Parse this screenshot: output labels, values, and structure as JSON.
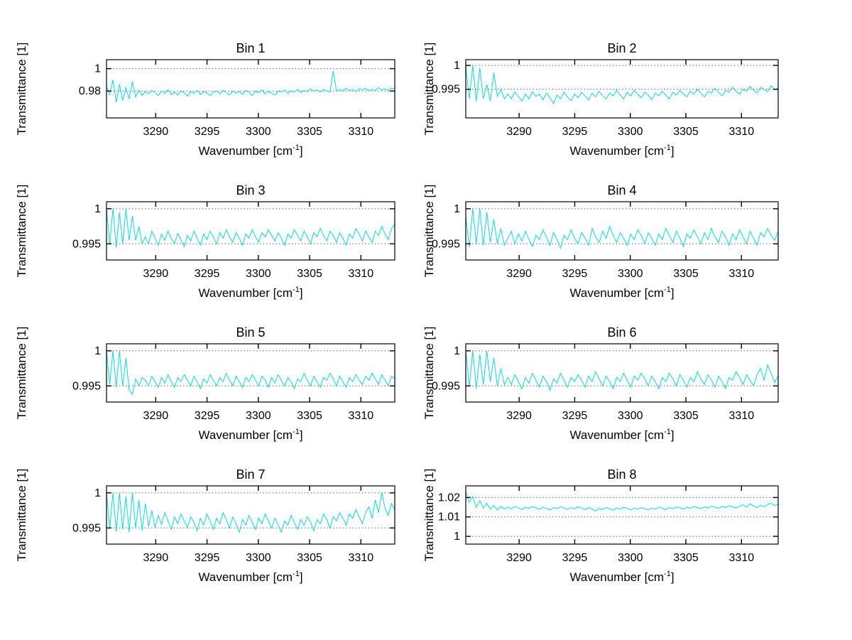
{
  "figure": {
    "background": "#ffffff",
    "axis_color": "#000000",
    "line_color": "#00e0e0",
    "grid_color": "#606060",
    "font_color": "#000000"
  },
  "chart_data": [
    {
      "type": "line",
      "title": "Bin 1",
      "xlabel_pre": "Wavenumber [cm",
      "xlabel_sup": "-1",
      "xlabel_post": "]",
      "ylabel": "Transmittance [1]",
      "xlim": [
        3285.2,
        3313.3
      ],
      "ylim": [
        0.956,
        1.008
      ],
      "xticks": [
        3290,
        3295,
        3300,
        3305,
        3310
      ],
      "xtick_labels": [
        "3290",
        "3295",
        "3300",
        "3305",
        "3310"
      ],
      "yticks": [
        0.98,
        1
      ],
      "ytick_labels": [
        "0.98",
        "1"
      ],
      "grid": "y-dotted",
      "legend": null,
      "values": [
        0.984,
        0.977,
        0.99,
        0.97,
        0.986,
        0.9715,
        0.983,
        0.973,
        0.9885,
        0.9745,
        0.981,
        0.976,
        0.9795,
        0.9775,
        0.9805,
        0.9785,
        0.976,
        0.98,
        0.978,
        0.981,
        0.977,
        0.979,
        0.9765,
        0.98,
        0.9785,
        0.9755,
        0.9795,
        0.978,
        0.9805,
        0.977,
        0.9795,
        0.9785,
        0.976,
        0.979,
        0.98,
        0.9775,
        0.9805,
        0.9785,
        0.9765,
        0.98,
        0.978,
        0.9795,
        0.977,
        0.9805,
        0.979,
        0.976,
        0.98,
        0.9785,
        0.981,
        0.9775,
        0.9795,
        0.978,
        0.9765,
        0.98,
        0.979,
        0.981,
        0.978,
        0.98,
        0.979,
        0.9815,
        0.9785,
        0.9805,
        0.9795,
        0.982,
        0.98,
        0.981,
        0.979,
        0.9815,
        0.98,
        0.979,
        0.998,
        0.98,
        0.9815,
        0.98,
        0.9825,
        0.9805,
        0.9815,
        0.9795,
        0.982,
        0.981,
        0.9825,
        0.98,
        0.9815,
        0.9805,
        0.983,
        0.981,
        0.982,
        0.9805,
        0.9825,
        0.9815
      ]
    },
    {
      "type": "line",
      "title": "Bin 2",
      "xlabel_pre": "Wavenumber [cm",
      "xlabel_sup": "-1",
      "xlabel_post": "]",
      "ylabel": "Transmittance [1]",
      "xlim": [
        3285.2,
        3313.3
      ],
      "ylim": [
        0.989,
        1.0012
      ],
      "xticks": [
        3290,
        3295,
        3300,
        3305,
        3310
      ],
      "xtick_labels": [
        "3290",
        "3295",
        "3300",
        "3305",
        "3310"
      ],
      "yticks": [
        0.995,
        1
      ],
      "ytick_labels": [
        "0.995",
        "1"
      ],
      "grid": "y-dotted",
      "legend": null,
      "values": [
        1.0,
        0.993,
        1.0,
        0.9925,
        0.9995,
        0.993,
        0.996,
        0.9925,
        0.9985,
        0.9935,
        0.995,
        0.993,
        0.994,
        0.993,
        0.9945,
        0.9935,
        0.9925,
        0.994,
        0.993,
        0.9945,
        0.9935,
        0.994,
        0.9928,
        0.9942,
        0.9932,
        0.992,
        0.9938,
        0.993,
        0.9944,
        0.9934,
        0.9926,
        0.994,
        0.9932,
        0.9944,
        0.9936,
        0.9928,
        0.9942,
        0.9934,
        0.9946,
        0.9936,
        0.993,
        0.9942,
        0.9936,
        0.9948,
        0.9938,
        0.993,
        0.9944,
        0.9936,
        0.9948,
        0.994,
        0.9932,
        0.9944,
        0.9938,
        0.9928,
        0.9942,
        0.9936,
        0.9946,
        0.9938,
        0.993,
        0.9944,
        0.9938,
        0.9948,
        0.994,
        0.9934,
        0.9946,
        0.994,
        0.995,
        0.9942,
        0.9934,
        0.9946,
        0.9942,
        0.9952,
        0.9944,
        0.9936,
        0.9948,
        0.9944,
        0.9954,
        0.9946,
        0.994,
        0.995,
        0.9946,
        0.9956,
        0.9948,
        0.9942,
        0.9954,
        0.995,
        0.9945,
        0.9958,
        0.995,
        0.9952
      ]
    },
    {
      "type": "line",
      "title": "Bin 3",
      "xlabel_pre": "Wavenumber [cm",
      "xlabel_sup": "-1",
      "xlabel_post": "]",
      "ylabel": "Transmittance [1]",
      "xlim": [
        3285.2,
        3313.3
      ],
      "ylim": [
        0.9927,
        1.001
      ],
      "xticks": [
        3290,
        3295,
        3300,
        3305,
        3310
      ],
      "xtick_labels": [
        "3290",
        "3295",
        "3300",
        "3305",
        "3310"
      ],
      "yticks": [
        0.995,
        1
      ],
      "ytick_labels": [
        "0.995",
        "1"
      ],
      "grid": "y-dotted",
      "legend": null,
      "values": [
        1.0,
        0.995,
        1.0,
        0.9945,
        0.9995,
        0.995,
        1.0,
        0.9955,
        0.999,
        0.9955,
        0.9975,
        0.995,
        0.996,
        0.995,
        0.9968,
        0.9958,
        0.9948,
        0.9964,
        0.9955,
        0.9968,
        0.9958,
        0.995,
        0.9965,
        0.9956,
        0.9946,
        0.9962,
        0.9954,
        0.9968,
        0.9958,
        0.9948,
        0.9964,
        0.9956,
        0.9968,
        0.996,
        0.995,
        0.9966,
        0.9958,
        0.997,
        0.996,
        0.9952,
        0.9966,
        0.9958,
        0.9948,
        0.9964,
        0.9958,
        0.997,
        0.996,
        0.9952,
        0.9966,
        0.996,
        0.997,
        0.9962,
        0.9954,
        0.9966,
        0.9958,
        0.9948,
        0.9964,
        0.9958,
        0.997,
        0.9962,
        0.9954,
        0.9968,
        0.996,
        0.995,
        0.9966,
        0.996,
        0.9972,
        0.9962,
        0.9954,
        0.9968,
        0.9962,
        0.9952,
        0.9966,
        0.9958,
        0.9948,
        0.9964,
        0.9958,
        0.9972,
        0.9964,
        0.9954,
        0.9968,
        0.996,
        0.9952,
        0.9968,
        0.9962,
        0.9975,
        0.9964,
        0.9956,
        0.9972,
        0.9978
      ]
    },
    {
      "type": "line",
      "title": "Bin 4",
      "xlabel_pre": "Wavenumber [cm",
      "xlabel_sup": "-1",
      "xlabel_post": "]",
      "ylabel": "Transmittance [1]",
      "xlim": [
        3285.2,
        3313.3
      ],
      "ylim": [
        0.9927,
        1.001
      ],
      "xticks": [
        3290,
        3295,
        3300,
        3305,
        3310
      ],
      "xtick_labels": [
        "3290",
        "3295",
        "3300",
        "3305",
        "3310"
      ],
      "yticks": [
        0.995,
        1
      ],
      "ytick_labels": [
        "0.995",
        "1"
      ],
      "grid": "y-dotted",
      "legend": null,
      "values": [
        0.999,
        0.9945,
        1.0,
        0.995,
        1.0,
        0.9948,
        0.9995,
        0.9952,
        0.9985,
        0.995,
        0.9972,
        0.9948,
        0.9958,
        0.9968,
        0.995,
        0.9964,
        0.9954,
        0.9968,
        0.9956,
        0.9946,
        0.9962,
        0.9956,
        0.997,
        0.996,
        0.9948,
        0.9966,
        0.9956,
        0.9944,
        0.9962,
        0.9956,
        0.997,
        0.9958,
        0.995,
        0.9966,
        0.9958,
        0.9948,
        0.9972,
        0.996,
        0.9952,
        0.9968,
        0.9958,
        0.9975,
        0.9962,
        0.9952,
        0.9966,
        0.9958,
        0.9948,
        0.9964,
        0.9956,
        0.997,
        0.9962,
        0.995,
        0.9966,
        0.9958,
        0.9948,
        0.9964,
        0.9956,
        0.9972,
        0.9962,
        0.9952,
        0.9968,
        0.9958,
        0.9946,
        0.9964,
        0.9958,
        0.997,
        0.996,
        0.995,
        0.9966,
        0.9956,
        0.9972,
        0.996,
        0.9952,
        0.9968,
        0.996,
        0.9948,
        0.9964,
        0.9956,
        0.997,
        0.996,
        0.995,
        0.9968,
        0.9958,
        0.9948,
        0.9966,
        0.996,
        0.9972,
        0.9962,
        0.9955,
        0.9968
      ]
    },
    {
      "type": "line",
      "title": "Bin 5",
      "xlabel_pre": "Wavenumber [cm",
      "xlabel_sup": "-1",
      "xlabel_post": "]",
      "ylabel": "Transmittance [1]",
      "xlim": [
        3285.2,
        3313.3
      ],
      "ylim": [
        0.9927,
        1.001
      ],
      "xticks": [
        3290,
        3295,
        3300,
        3305,
        3310
      ],
      "xtick_labels": [
        "3290",
        "3295",
        "3300",
        "3305",
        "3310"
      ],
      "yticks": [
        0.995,
        1
      ],
      "ytick_labels": [
        "0.995",
        "1"
      ],
      "grid": "y-dotted",
      "legend": null,
      "values": [
        1.0,
        0.9952,
        1.0,
        0.9948,
        1.0,
        0.995,
        0.999,
        0.9944,
        0.9938,
        0.996,
        0.995,
        0.9962,
        0.9958,
        0.995,
        0.9964,
        0.9956,
        0.9948,
        0.9962,
        0.9954,
        0.9966,
        0.9956,
        0.9948,
        0.9962,
        0.9956,
        0.9966,
        0.9958,
        0.995,
        0.9964,
        0.9956,
        0.9946,
        0.996,
        0.9954,
        0.9966,
        0.9958,
        0.995,
        0.9962,
        0.9956,
        0.9968,
        0.9958,
        0.995,
        0.9964,
        0.9956,
        0.9948,
        0.9962,
        0.9956,
        0.9966,
        0.9958,
        0.995,
        0.9964,
        0.9958,
        0.9948,
        0.9962,
        0.9954,
        0.9966,
        0.9958,
        0.995,
        0.9962,
        0.9956,
        0.9946,
        0.996,
        0.9956,
        0.9968,
        0.9958,
        0.995,
        0.9964,
        0.9956,
        0.9948,
        0.9962,
        0.9958,
        0.9968,
        0.996,
        0.995,
        0.9964,
        0.9956,
        0.9948,
        0.9962,
        0.9956,
        0.9966,
        0.9958,
        0.9952,
        0.9964,
        0.9958,
        0.9968,
        0.996,
        0.9952,
        0.9966,
        0.9958,
        0.995,
        0.9964,
        0.996
      ]
    },
    {
      "type": "line",
      "title": "Bin 6",
      "xlabel_pre": "Wavenumber [cm",
      "xlabel_sup": "-1",
      "xlabel_post": "]",
      "ylabel": "Transmittance [1]",
      "xlim": [
        3285.2,
        3313.3
      ],
      "ylim": [
        0.9927,
        1.001
      ],
      "xticks": [
        3290,
        3295,
        3300,
        3305,
        3310
      ],
      "xtick_labels": [
        "3290",
        "3295",
        "3300",
        "3305",
        "3310"
      ],
      "yticks": [
        0.995,
        1
      ],
      "ytick_labels": [
        "0.995",
        "1"
      ],
      "grid": "y-dotted",
      "legend": null,
      "values": [
        1.0,
        0.995,
        1.0,
        0.9946,
        0.9995,
        0.9952,
        1.0,
        0.9956,
        0.999,
        0.995,
        0.9975,
        0.9952,
        0.9962,
        0.9952,
        0.9966,
        0.9956,
        0.9946,
        0.9962,
        0.9954,
        0.9968,
        0.9958,
        0.9948,
        0.9964,
        0.9956,
        0.9944,
        0.996,
        0.9954,
        0.9968,
        0.9958,
        0.9948,
        0.9962,
        0.9956,
        0.9966,
        0.9958,
        0.9948,
        0.9964,
        0.9956,
        0.997,
        0.996,
        0.995,
        0.9964,
        0.9956,
        0.9946,
        0.9962,
        0.9956,
        0.9968,
        0.9958,
        0.9948,
        0.9964,
        0.9958,
        0.9968,
        0.996,
        0.995,
        0.9964,
        0.9956,
        0.9946,
        0.9962,
        0.9956,
        0.9968,
        0.996,
        0.995,
        0.9966,
        0.9958,
        0.9948,
        0.9962,
        0.9956,
        0.997,
        0.996,
        0.9952,
        0.9966,
        0.9958,
        0.9948,
        0.9964,
        0.9956,
        0.9946,
        0.9962,
        0.9958,
        0.997,
        0.9962,
        0.9952,
        0.9966,
        0.9958,
        0.995,
        0.9966,
        0.9975,
        0.9958,
        0.998,
        0.9968,
        0.9955,
        0.9965
      ]
    },
    {
      "type": "line",
      "title": "Bin 7",
      "xlabel_pre": "Wavenumber [cm",
      "xlabel_sup": "-1",
      "xlabel_post": "]",
      "ylabel": "Transmittance [1]",
      "xlim": [
        3285.2,
        3313.3
      ],
      "ylim": [
        0.9927,
        1.001
      ],
      "xticks": [
        3290,
        3295,
        3300,
        3305,
        3310
      ],
      "xtick_labels": [
        "3290",
        "3295",
        "3300",
        "3305",
        "3310"
      ],
      "yticks": [
        0.995,
        1
      ],
      "ytick_labels": [
        "0.995",
        "1"
      ],
      "grid": "y-dotted",
      "legend": null,
      "values": [
        1.0,
        0.995,
        1.0,
        0.9945,
        1.0,
        0.9948,
        0.9995,
        0.9944,
        1.0,
        0.995,
        0.999,
        0.9946,
        0.9985,
        0.9952,
        0.9975,
        0.995,
        0.9968,
        0.9955,
        0.9972,
        0.996,
        0.9948,
        0.9966,
        0.9956,
        0.997,
        0.996,
        0.995,
        0.9966,
        0.9958,
        0.9946,
        0.9964,
        0.9954,
        0.997,
        0.996,
        0.9948,
        0.9964,
        0.9956,
        0.9972,
        0.9962,
        0.995,
        0.9966,
        0.9956,
        0.9944,
        0.9962,
        0.9954,
        0.9968,
        0.9958,
        0.9948,
        0.9964,
        0.9956,
        0.997,
        0.996,
        0.995,
        0.9964,
        0.9954,
        0.9944,
        0.996,
        0.9954,
        0.9968,
        0.9958,
        0.9948,
        0.9962,
        0.9954,
        0.9966,
        0.9958,
        0.9946,
        0.9962,
        0.9956,
        0.997,
        0.9962,
        0.995,
        0.9966,
        0.996,
        0.9972,
        0.9964,
        0.9954,
        0.997,
        0.9964,
        0.9976,
        0.9966,
        0.9956,
        0.9972,
        0.998,
        0.9964,
        0.999,
        0.9972,
        1.0,
        0.9978,
        0.9968,
        0.9985,
        0.9975
      ]
    },
    {
      "type": "line",
      "title": "Bin 8",
      "xlabel_pre": "Wavenumber [cm",
      "xlabel_sup": "-1",
      "xlabel_post": "]",
      "ylabel": "Transmittance [1]",
      "xlim": [
        3285.2,
        3313.3
      ],
      "ylim": [
        0.996,
        1.026
      ],
      "xticks": [
        3290,
        3295,
        3300,
        3305,
        3310
      ],
      "xtick_labels": [
        "3290",
        "3295",
        "3300",
        "3305",
        "3310"
      ],
      "yticks": [
        1,
        1.01,
        1.02
      ],
      "ytick_labels": [
        "1",
        "1.01",
        "1.02"
      ],
      "grid": "y-dotted",
      "legend": null,
      "values": [
        1.023,
        1.0175,
        1.0205,
        1.015,
        1.0185,
        1.0145,
        1.017,
        1.014,
        1.016,
        1.0135,
        1.0155,
        1.014,
        1.015,
        1.0142,
        1.0154,
        1.0146,
        1.0138,
        1.015,
        1.0144,
        1.0154,
        1.0146,
        1.014,
        1.015,
        1.0144,
        1.0136,
        1.0148,
        1.0142,
        1.0152,
        1.0146,
        1.0138,
        1.0148,
        1.0142,
        1.0152,
        1.0146,
        1.0138,
        1.0148,
        1.014,
        1.013,
        1.0144,
        1.0138,
        1.0148,
        1.0142,
        1.0134,
        1.0146,
        1.014,
        1.015,
        1.0144,
        1.0136,
        1.0146,
        1.014,
        1.0148,
        1.0142,
        1.0136,
        1.0146,
        1.014,
        1.015,
        1.0144,
        1.0138,
        1.0148,
        1.0142,
        1.0152,
        1.0146,
        1.014,
        1.015,
        1.0144,
        1.0154,
        1.0148,
        1.0142,
        1.0152,
        1.0146,
        1.0156,
        1.015,
        1.0144,
        1.0154,
        1.0148,
        1.0158,
        1.0152,
        1.0146,
        1.0156,
        1.0162,
        1.015,
        1.0168,
        1.0156,
        1.0148,
        1.016,
        1.0152,
        1.0164,
        1.017,
        1.0158,
        1.0165
      ]
    }
  ]
}
